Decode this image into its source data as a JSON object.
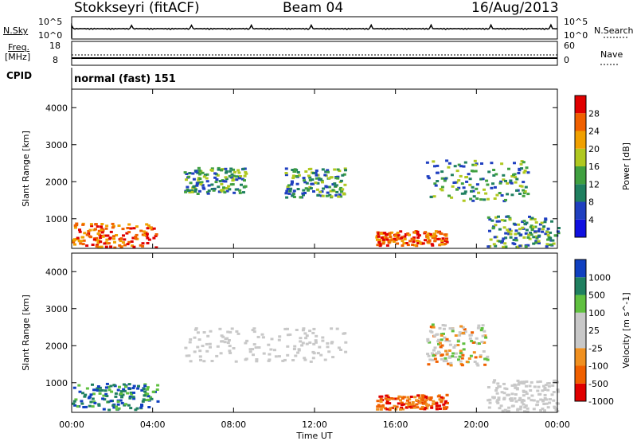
{
  "header": {
    "station": "Stokkseyri (fitACF)",
    "beam": "Beam 04",
    "date": "16/Aug/2013"
  },
  "nsky_panel": {
    "left_label": "N.Sky",
    "right_label": "N.Search",
    "left_ticks": [
      "10^5",
      "10^0"
    ],
    "right_ticks": [
      "10^5",
      "10^0"
    ]
  },
  "freq_panel": {
    "left_label_1": "Freq.",
    "left_label_2": "[MHz]",
    "left_ticks": [
      "18",
      "8"
    ],
    "right_label": "Nave",
    "right_ticks": [
      "60",
      "0"
    ]
  },
  "cpid": {
    "label": "CPID",
    "value": "normal (fast) 151"
  },
  "colors": {
    "power": [
      "#1010e0",
      "#2040c0",
      "#208060",
      "#40a040",
      "#b0c820",
      "#f0a000",
      "#f06000",
      "#e00000"
    ],
    "velocity": [
      "#e00000",
      "#f06000",
      "#f09020",
      "#c8c8c8",
      "#c8c8c8",
      "#60c040",
      "#208060",
      "#1040c0"
    ]
  },
  "chart_data": [
    {
      "type": "heatmap",
      "title": "",
      "xlabel": "Time UT",
      "ylabel": "Slant Range [km]",
      "x_ticks": [
        "00:00",
        "04:00",
        "08:00",
        "12:00",
        "16:00",
        "20:00",
        "00:00"
      ],
      "y_ticks": [
        4000,
        3000,
        2000,
        1000
      ],
      "ylim": [
        200,
        4500
      ],
      "colorbar": {
        "label": "Power [dB]",
        "ticks": [
          "28",
          "24",
          "20",
          "16",
          "12",
          "8",
          "4"
        ]
      },
      "features": [
        {
          "time": [
            0.0,
            4.2
          ],
          "range": [
            250,
            900
          ],
          "level": "high"
        },
        {
          "time": [
            5.5,
            8.6
          ],
          "range": [
            1700,
            2400
          ],
          "level": "medium"
        },
        {
          "time": [
            10.5,
            13.5
          ],
          "range": [
            1600,
            2400
          ],
          "level": "medium"
        },
        {
          "time": [
            15.0,
            18.5
          ],
          "range": [
            300,
            700
          ],
          "level": "high"
        },
        {
          "time": [
            17.5,
            22.5
          ],
          "range": [
            1500,
            2600
          ],
          "level": "medium"
        },
        {
          "time": [
            20.5,
            24.0
          ],
          "range": [
            250,
            1100
          ],
          "level": "medium"
        }
      ]
    },
    {
      "type": "heatmap",
      "title": "",
      "xlabel": "Time UT",
      "ylabel": "Slant Range [km]",
      "x_ticks": [
        "00:00",
        "04:00",
        "08:00",
        "12:00",
        "16:00",
        "20:00",
        "00:00"
      ],
      "y_ticks": [
        4000,
        3000,
        2000,
        1000
      ],
      "ylim": [
        200,
        4500
      ],
      "colorbar": {
        "label": "Velocity [m s^-1]",
        "ticks": [
          "1000",
          "500",
          "100",
          "25",
          "-25",
          "-100",
          "-500",
          "-1000"
        ]
      },
      "features": [
        {
          "time": [
            0.0,
            4.2
          ],
          "range": [
            250,
            1000
          ],
          "level": "positive"
        },
        {
          "time": [
            5.5,
            13.5
          ],
          "range": [
            1600,
            2500
          ],
          "level": "near-zero"
        },
        {
          "time": [
            15.0,
            18.5
          ],
          "range": [
            300,
            700
          ],
          "level": "negative"
        },
        {
          "time": [
            17.5,
            20.5
          ],
          "range": [
            1500,
            2600
          ],
          "level": "mixed"
        },
        {
          "time": [
            20.5,
            24.0
          ],
          "range": [
            250,
            1100
          ],
          "level": "near-zero"
        }
      ]
    }
  ]
}
